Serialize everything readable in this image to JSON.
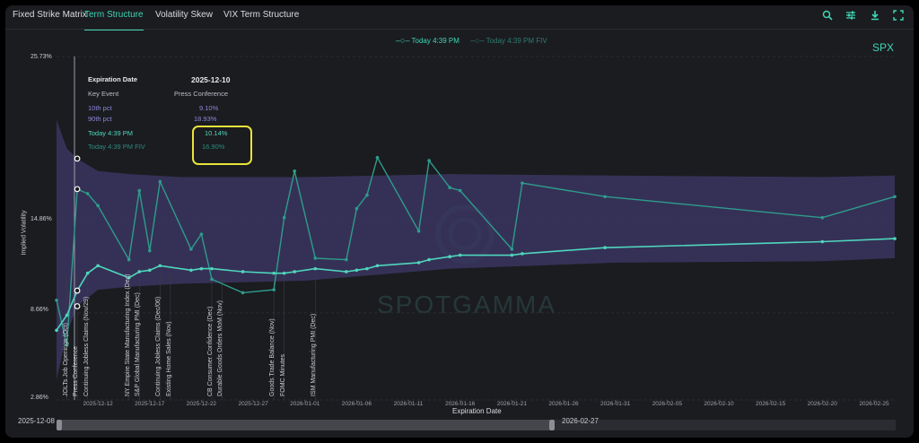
{
  "tabs": [
    {
      "label": "Fixed Strike Matrix",
      "active": false
    },
    {
      "label": "Term Structure",
      "active": true
    },
    {
      "label": "Volatility Skew",
      "active": false
    },
    {
      "label": "VIX Term Structure",
      "active": false
    }
  ],
  "toolbar": {
    "icons": [
      "search-icon",
      "sliders-icon",
      "download-icon",
      "expand-icon"
    ]
  },
  "ticker": "SPX",
  "watermark": "SPOTGAMMA",
  "tooltip": {
    "expiration_label": "Expiration Date",
    "expiration_value": "2025-12-10",
    "key_event_label": "Key Event",
    "key_event_value": "Press Conference",
    "p10_label": "10th pct",
    "p10_value": "9.10%",
    "p90_label": "90th pct",
    "p90_value": "18.93%",
    "today_label": "Today 4:39 PM",
    "today_value": "10.14%",
    "fiv_label": "Today 4:39 PM FIV",
    "fiv_value": "16.90%"
  },
  "brush": {
    "start_label": "2025-12-08",
    "end_label": "2026-02-27"
  },
  "colors": {
    "band": "#3a3560",
    "today": "#4fd6bd",
    "fiv": "#2e9c8c",
    "accent": "#3ed6b5",
    "highlight": "#e9e33a"
  },
  "chart_data": {
    "type": "line",
    "xlabel": "Expiration Date",
    "ylabel": "Implied Volatility",
    "x_range": [
      "2025-12-08",
      "2026-02-27"
    ],
    "ylim": [
      2.86,
      25.73
    ],
    "y_ticks": [
      "25.73%",
      "14.86%",
      "8.66%",
      "2.86%"
    ],
    "x_ticks": [
      "2025-12-12",
      "2025-12-17",
      "2025-12-22",
      "2025-12-27",
      "2026-01-01",
      "2026-01-06",
      "2026-01-11",
      "2026-01-16",
      "2026-01-21",
      "2026-01-26",
      "2026-01-31",
      "2026-02-05",
      "2026-02-10",
      "2026-02-15",
      "2026-02-20",
      "2026-02-25"
    ],
    "legend": [
      "Today 4:39 PM",
      "Today 4:39 PM FIV"
    ],
    "legend_position": "top",
    "grid": true,
    "band": {
      "name": "10th-90th pct",
      "x": [
        "2025-12-08",
        "2025-12-09",
        "2025-12-10",
        "2025-12-12",
        "2025-12-15",
        "2025-12-20",
        "2026-01-01",
        "2026-01-15",
        "2026-01-31",
        "2026-02-20",
        "2026-02-27"
      ],
      "p90": [
        21.5,
        19.6,
        18.93,
        18.1,
        17.9,
        17.7,
        17.7,
        17.9,
        17.8,
        17.7,
        17.8
      ],
      "p10": [
        4.2,
        7.3,
        9.1,
        10.2,
        10.4,
        10.6,
        10.8,
        11.6,
        12.0,
        12.1,
        12.3
      ]
    },
    "series": [
      {
        "name": "Today 4:39 PM",
        "x": [
          "2025-12-08",
          "2025-12-09",
          "2025-12-10",
          "2025-12-11",
          "2025-12-12",
          "2025-12-15",
          "2025-12-16",
          "2025-12-17",
          "2025-12-18",
          "2025-12-21",
          "2025-12-22",
          "2025-12-23",
          "2025-12-26",
          "2025-12-29",
          "2025-12-30",
          "2025-12-31",
          "2026-01-02",
          "2026-01-05",
          "2026-01-06",
          "2026-01-07",
          "2026-01-08",
          "2026-01-12",
          "2026-01-13",
          "2026-01-15",
          "2026-01-16",
          "2026-01-21",
          "2026-01-22",
          "2026-01-30",
          "2026-02-20",
          "2026-02-27"
        ],
        "values": [
          7.5,
          8.5,
          10.14,
          11.3,
          11.8,
          11.0,
          11.4,
          11.5,
          11.8,
          11.5,
          11.6,
          11.6,
          11.4,
          11.3,
          11.3,
          11.4,
          11.6,
          11.4,
          11.5,
          11.6,
          11.8,
          12.0,
          12.2,
          12.4,
          12.5,
          12.5,
          12.6,
          13.0,
          13.4,
          13.6
        ]
      },
      {
        "name": "Today 4:39 PM FIV",
        "x": [
          "2025-12-08",
          "2025-12-09",
          "2025-12-10",
          "2025-12-11",
          "2025-12-12",
          "2025-12-15",
          "2025-12-16",
          "2025-12-17",
          "2025-12-18",
          "2025-12-21",
          "2025-12-22",
          "2025-12-23",
          "2025-12-26",
          "2025-12-29",
          "2025-12-30",
          "2025-12-31",
          "2026-01-02",
          "2026-01-05",
          "2026-01-06",
          "2026-01-07",
          "2026-01-08",
          "2026-01-12",
          "2026-01-13",
          "2026-01-15",
          "2026-01-16",
          "2026-01-21",
          "2026-01-22",
          "2026-01-30",
          "2026-02-20",
          "2026-02-27"
        ],
        "values": [
          9.5,
          6.5,
          16.9,
          16.6,
          15.8,
          12.2,
          16.8,
          12.8,
          17.4,
          12.9,
          13.9,
          10.9,
          10.0,
          10.2,
          15.0,
          18.1,
          12.3,
          12.2,
          15.6,
          16.5,
          19.0,
          14.1,
          18.8,
          17.0,
          16.8,
          12.9,
          17.3,
          16.4,
          15.0,
          16.4
        ]
      }
    ],
    "events": [
      {
        "label": "JOLTs Job Openings (Oct)",
        "x": "2025-12-09"
      },
      {
        "label": "Press Conference",
        "x": "2025-12-10"
      },
      {
        "label": "Continuing Jobless Claims (Nov/29)",
        "x": "2025-12-11"
      },
      {
        "label": "NY Empire State Manufacturing Index (Dec)",
        "x": "2025-12-15"
      },
      {
        "label": "S&P Global Manufacturing PMI (Dec)",
        "x": "2025-12-16"
      },
      {
        "label": "Continuing Jobless Claims (Dec/06)",
        "x": "2025-12-18"
      },
      {
        "label": "Existing Home Sales (Nov)",
        "x": "2025-12-19"
      },
      {
        "label": "CB Consumer Confidence (Dec)",
        "x": "2025-12-23"
      },
      {
        "label": "Durable Goods Orders MoM (Nov)",
        "x": "2025-12-24"
      },
      {
        "label": "Goods Trade Balance (Nov)",
        "x": "2025-12-29"
      },
      {
        "label": "FOMC Minutes",
        "x": "2025-12-30"
      },
      {
        "label": "ISM Manufacturing PMI (Dec)",
        "x": "2026-01-02"
      }
    ]
  }
}
